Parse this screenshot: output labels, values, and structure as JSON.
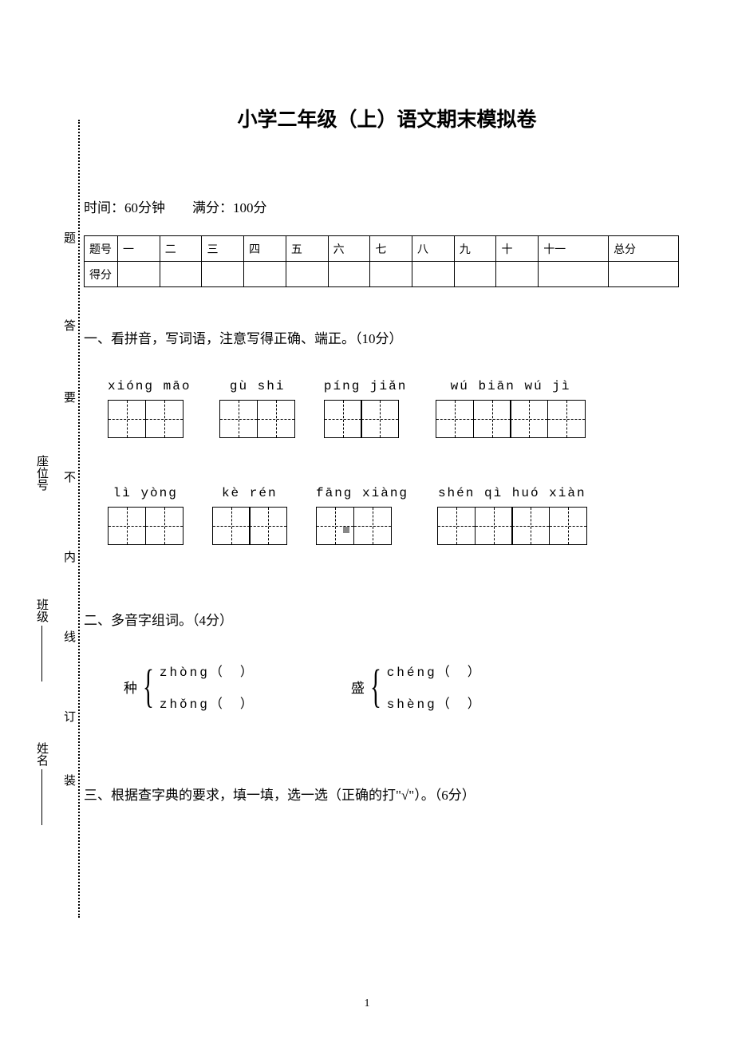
{
  "title": "小学二年级（上）语文期末模拟卷",
  "info": "时间：60分钟　　满分：100分",
  "score_table": {
    "row1_label": "题号",
    "row2_label": "得分",
    "cols": [
      "一",
      "二",
      "三",
      "四",
      "五",
      "六",
      "七",
      "八",
      "九",
      "十",
      "十一",
      "总分"
    ]
  },
  "side_markers": [
    "题",
    "答",
    "要",
    "不",
    "内",
    "线",
    "订",
    "装"
  ],
  "side_fields": {
    "seat": "座位号",
    "class": "班级",
    "name": "姓名"
  },
  "section1": {
    "head": "一、看拼音，写词语，注意写得正确、端正。（10分）",
    "row1": [
      {
        "pinyin": "xióng māo",
        "boxes": 2
      },
      {
        "pinyin": "gù   shi",
        "boxes": 2
      },
      {
        "pinyin": "píng  jiǎn",
        "boxes": 2
      },
      {
        "pinyin": "wú  biān  wú   jì",
        "boxes": 4
      }
    ],
    "row2": [
      {
        "pinyin": "lì   yòng",
        "boxes": 2
      },
      {
        "pinyin": "kè   rén",
        "boxes": 2
      },
      {
        "pinyin": "fāng xiàng",
        "boxes": 2
      },
      {
        "pinyin": "shén qì huó xiàn",
        "boxes": 4
      }
    ]
  },
  "section2": {
    "head": "二、多音字组词。（4分）",
    "items": [
      {
        "char": "种",
        "opts": [
          "zhòng（　）",
          "zhǒng（　）"
        ]
      },
      {
        "char": "盛",
        "opts": [
          "chéng（　）",
          "shèng（　）"
        ]
      }
    ]
  },
  "section3": {
    "head": "三、根据查字典的要求，填一填，选一选（正确的打\"√\"）。（6分）"
  },
  "page_number": "1",
  "colors": {
    "text": "#000000",
    "bg": "#ffffff",
    "marker": "#888888"
  }
}
